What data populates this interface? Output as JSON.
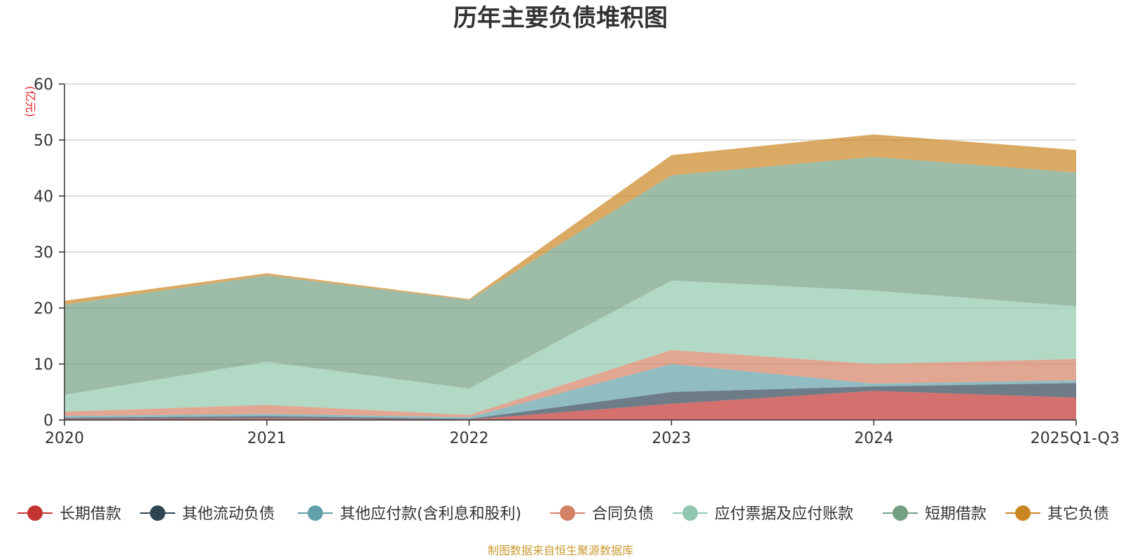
{
  "chart_data": {
    "type": "area",
    "stacked": true,
    "title": "历年主要负债堆积图",
    "unit_label": "(亿元)",
    "categories": [
      "2020",
      "2021",
      "2022",
      "2023",
      "2024",
      "2025Q1-Q3"
    ],
    "y_ticks": [
      "0",
      "10",
      "20",
      "30",
      "40",
      "50",
      "60"
    ],
    "ylim": [
      0,
      60
    ],
    "grid": true,
    "legend_position": "bottom",
    "series": [
      {
        "name": "长期借款",
        "color": "#c23531",
        "values": [
          0.2,
          0.3,
          0.1,
          2.9,
          5.2,
          4.0
        ]
      },
      {
        "name": "其他流动负债",
        "color": "#2f4554",
        "values": [
          0.2,
          0.4,
          0.1,
          2.1,
          0.8,
          2.6
        ]
      },
      {
        "name": "其他应付款(含利息和股利)",
        "color": "#61a0a8",
        "values": [
          0.3,
          0.4,
          0.3,
          5.0,
          0.5,
          0.5
        ]
      },
      {
        "name": "合同负债",
        "color": "#d48265",
        "values": [
          0.8,
          1.6,
          0.4,
          2.5,
          3.5,
          3.8
        ]
      },
      {
        "name": "应付票据及应付账款",
        "color": "#91c7ae",
        "values": [
          3.0,
          7.7,
          4.7,
          12.4,
          13.1,
          9.4
        ]
      },
      {
        "name": "短期借款",
        "color": "#749f83",
        "values": [
          16.1,
          15.4,
          15.8,
          18.8,
          23.9,
          23.9
        ]
      },
      {
        "name": "其它负债",
        "color": "#ca8622",
        "values": [
          0.7,
          0.4,
          0.2,
          3.6,
          4.0,
          4.0
        ]
      }
    ]
  },
  "footer": {
    "source": "制图数据来自恒生聚源数据库"
  }
}
